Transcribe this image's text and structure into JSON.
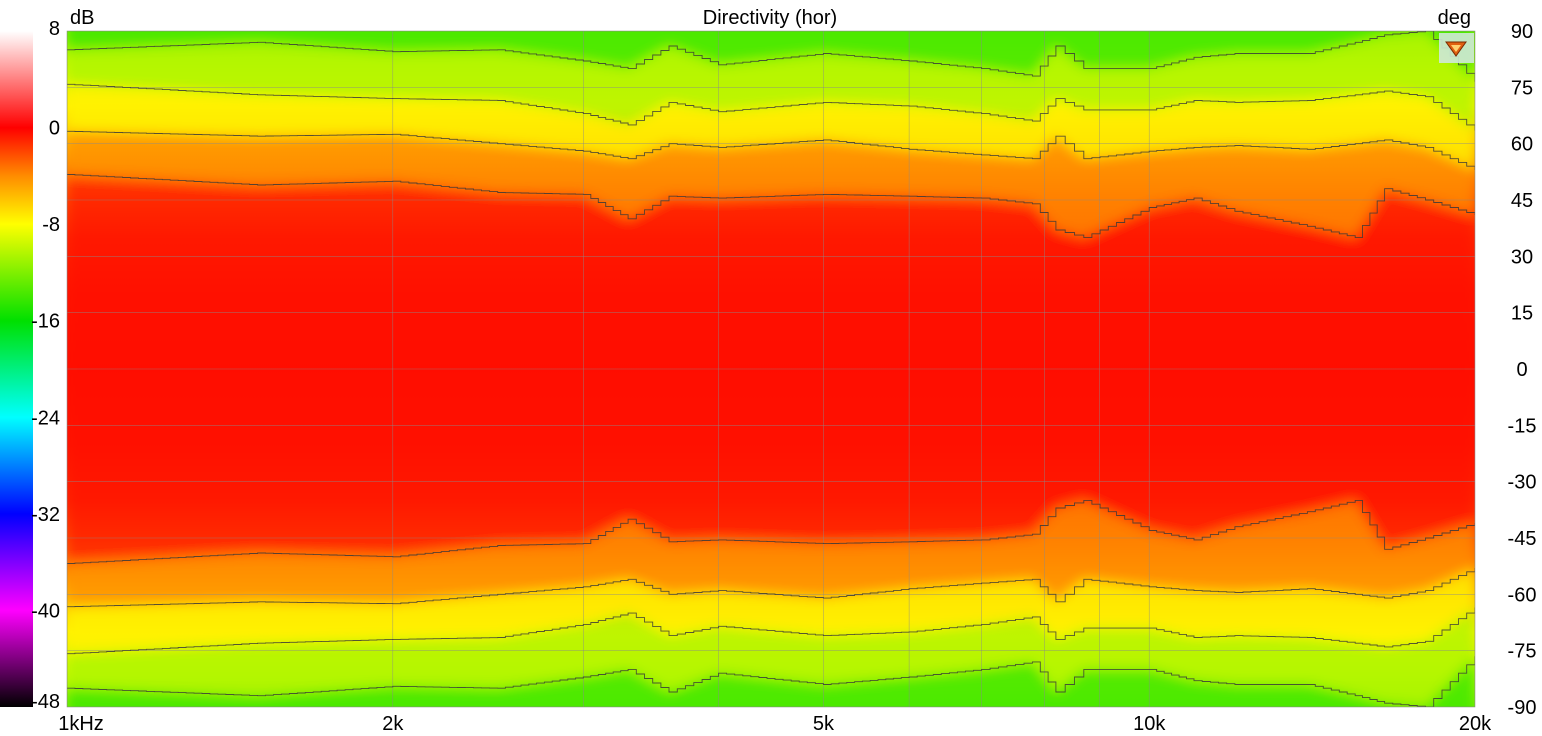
{
  "chart_data": {
    "type": "heatmap",
    "title": "Directivity (hor)",
    "x_scale": "log",
    "x_range": [
      1000,
      20000
    ],
    "x_ticks": [
      {
        "value": 1000,
        "label": "1kHz"
      },
      {
        "value": 2000,
        "label": "2k"
      },
      {
        "value": 5000,
        "label": "5k"
      },
      {
        "value": 10000,
        "label": "10k"
      },
      {
        "value": 20000,
        "label": "20k"
      }
    ],
    "y_range": [
      -90,
      90
    ],
    "y_unit": "deg",
    "y_ticks": [
      90,
      75,
      60,
      45,
      30,
      15,
      0,
      -15,
      -30,
      -45,
      -60,
      -75,
      -90
    ],
    "colorbar": {
      "unit": "dB",
      "range": [
        -48,
        8
      ],
      "ticks": [
        8,
        0,
        -8,
        -16,
        -24,
        -32,
        -40,
        -48
      ],
      "stops": [
        {
          "value": 8,
          "color": "#ffffff"
        },
        {
          "value": 0,
          "color": "#ff0000"
        },
        {
          "value": -4,
          "color": "#ff8c00"
        },
        {
          "value": -8,
          "color": "#ffff00"
        },
        {
          "value": -16,
          "color": "#00e000"
        },
        {
          "value": -24,
          "color": "#00ffff"
        },
        {
          "value": -32,
          "color": "#0000ff"
        },
        {
          "value": -40,
          "color": "#ff00ff"
        },
        {
          "value": -48,
          "color": "#000000"
        }
      ]
    },
    "contour_levels_db": [
      -3,
      -6,
      -9,
      -12
    ],
    "contours_deg": {
      "freqs": [
        1000,
        1500,
        2000,
        2500,
        3000,
        3300,
        3600,
        4000,
        5000,
        6000,
        7000,
        7800,
        8200,
        8700,
        10000,
        11000,
        12000,
        14000,
        15500,
        16500,
        18000,
        20000
      ],
      "level_-3": [
        51.8,
        49,
        50,
        47,
        46.5,
        40,
        46,
        45.5,
        46.5,
        46,
        45.5,
        44,
        37,
        35,
        43,
        45.5,
        42,
        38,
        35,
        48,
        45,
        41
      ],
      "level_-6": [
        63.3,
        62,
        62.5,
        60,
        58,
        56,
        60,
        59,
        61,
        58.5,
        57,
        56,
        62,
        56,
        58,
        59,
        59.5,
        58.5,
        60,
        61,
        59,
        53
      ],
      "level_-9": [
        75.8,
        73,
        72,
        71.5,
        68,
        65,
        71,
        68.5,
        71,
        70,
        68,
        66,
        72,
        69,
        69,
        71.5,
        71,
        71.5,
        73,
        74,
        72.5,
        63.5
      ],
      "level_-12": [
        85,
        87,
        84.5,
        85,
        82,
        80,
        86,
        81,
        84,
        82,
        80,
        78,
        86,
        80,
        80,
        83,
        84,
        84,
        87,
        89,
        90,
        76.5
      ]
    }
  },
  "corner_icon": "speaker-logo-icon",
  "corner_icon_color": "#e06010"
}
